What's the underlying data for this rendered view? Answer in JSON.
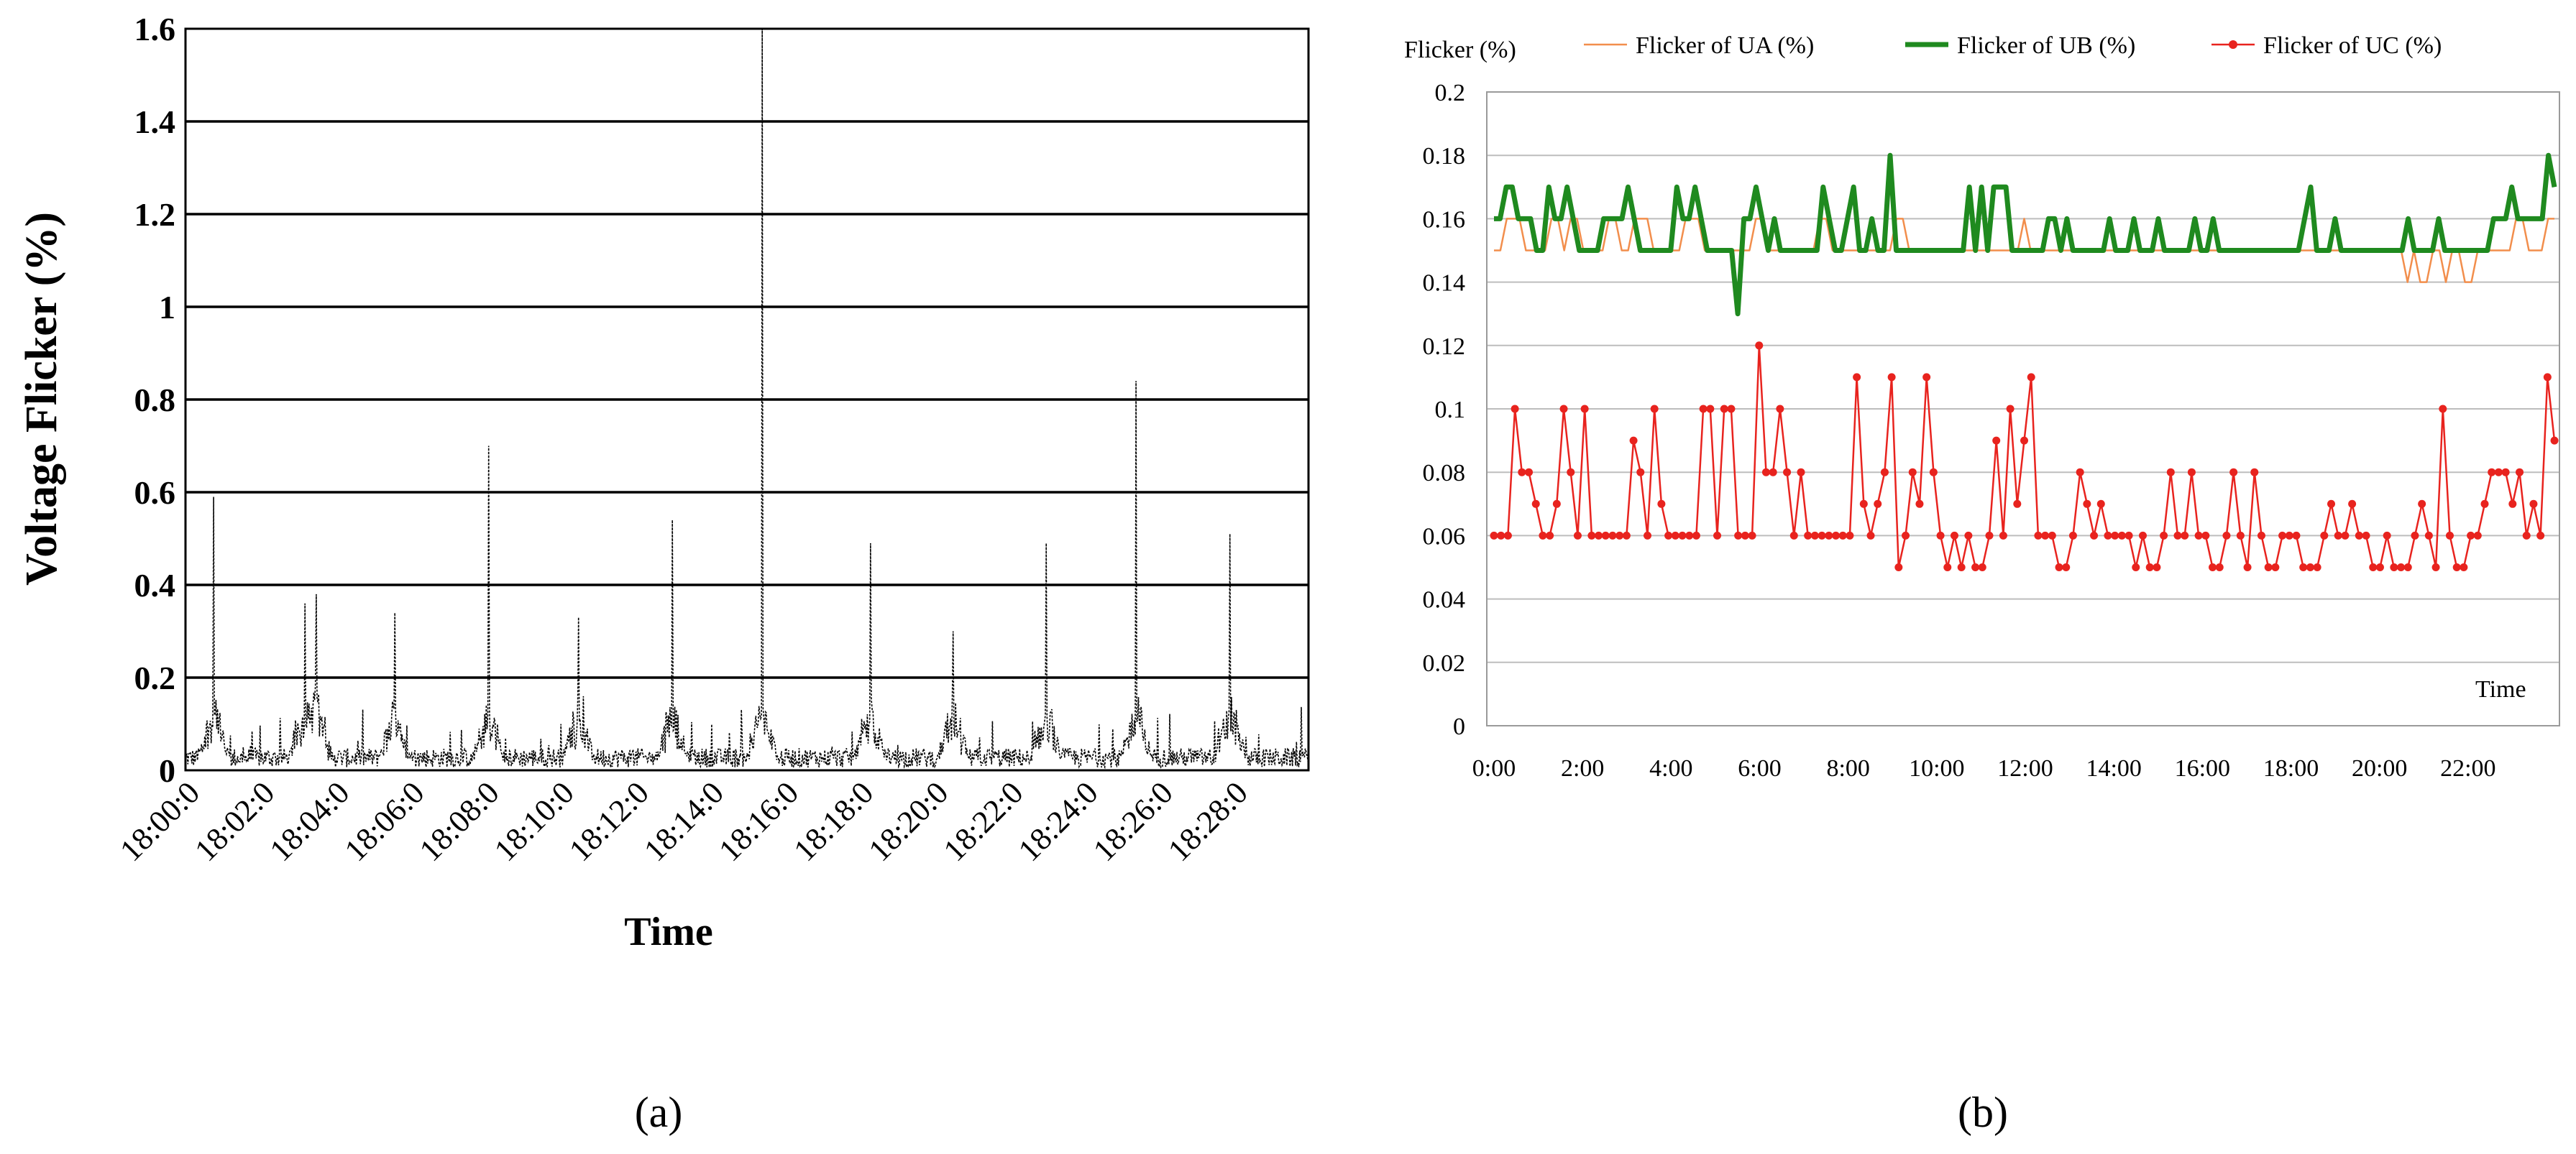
{
  "chart_data": [
    {
      "type": "line",
      "ylabel": "Voltage Flicker (%)",
      "xlabel": "Time",
      "ylim": [
        0,
        1.6
      ],
      "yticks": [
        "0",
        "0.2",
        "0.4",
        "0.6",
        "0.8",
        "1",
        "1.2",
        "1.4",
        "1.6"
      ],
      "xtick_labels": [
        "18:00:0",
        "18:02:0",
        "18:04:0",
        "18:06:0",
        "18:08:0",
        "18:10:0",
        "18:12:0",
        "18:14:0",
        "18:16:0",
        "18:18:0",
        "18:20:0",
        "18:22:0",
        "18:24:0",
        "18:26:0",
        "18:28:0"
      ],
      "x_range_minutes": [
        0,
        30
      ],
      "grid": "horizontal",
      "series": [
        {
          "color": "#000000",
          "baseline": 0.03,
          "spikes": [
            {
              "t": 0.75,
              "v": 0.59
            },
            {
              "t": 3.2,
              "v": 0.36
            },
            {
              "t": 3.5,
              "v": 0.38
            },
            {
              "t": 5.6,
              "v": 0.34
            },
            {
              "t": 8.1,
              "v": 0.7
            },
            {
              "t": 10.5,
              "v": 0.33
            },
            {
              "t": 13.0,
              "v": 0.54
            },
            {
              "t": 15.4,
              "v": 1.6
            },
            {
              "t": 18.3,
              "v": 0.49
            },
            {
              "t": 20.5,
              "v": 0.3
            },
            {
              "t": 23.0,
              "v": 0.49
            },
            {
              "t": 25.4,
              "v": 0.84
            },
            {
              "t": 27.9,
              "v": 0.51
            }
          ]
        }
      ],
      "panel_label": "(a)"
    },
    {
      "type": "line",
      "ylabel": "Flicker (%)",
      "xlabel": "Time",
      "ylim": [
        0,
        0.2
      ],
      "yticks": [
        "0",
        "0.02",
        "0.04",
        "0.06",
        "0.08",
        "0.1",
        "0.12",
        "0.14",
        "0.16",
        "0.18",
        "0.2"
      ],
      "xticks": [
        "0:00",
        "2:00",
        "4:00",
        "6:00",
        "8:00",
        "10:00",
        "12:00",
        "14:00",
        "16:00",
        "18:00",
        "20:00",
        "22:00"
      ],
      "x_range_hours": [
        0,
        24
      ],
      "grid": "horizontal",
      "legend": "top",
      "series": [
        {
          "name": "Flicker of  UA (%)",
          "color": "#f28e4c",
          "values": [
            0.15,
            0.15,
            0.16,
            0.16,
            0.16,
            0.15,
            0.15,
            0.15,
            0.15,
            0.16,
            0.16,
            0.15,
            0.16,
            0.16,
            0.15,
            0.15,
            0.15,
            0.15,
            0.16,
            0.16,
            0.15,
            0.15,
            0.16,
            0.16,
            0.16,
            0.15,
            0.15,
            0.15,
            0.15,
            0.15,
            0.16,
            0.16,
            0.16,
            0.15,
            0.15,
            0.15,
            0.15,
            0.15,
            0.15,
            0.15,
            0.15,
            0.16,
            0.16,
            0.15,
            0.15,
            0.15,
            0.15,
            0.15,
            0.15,
            0.15,
            0.15,
            0.16,
            0.16,
            0.15,
            0.15,
            0.15,
            0.15,
            0.15,
            0.15,
            0.15,
            0.15,
            0.15,
            0.15,
            0.16,
            0.16,
            0.15,
            0.15,
            0.15,
            0.15,
            0.15,
            0.15,
            0.15,
            0.15,
            0.15,
            0.15,
            0.15,
            0.15,
            0.15,
            0.15,
            0.15,
            0.15,
            0.15,
            0.15,
            0.16,
            0.15,
            0.15,
            0.15,
            0.15,
            0.15,
            0.15,
            0.15,
            0.15,
            0.15,
            0.15,
            0.15,
            0.15,
            0.15,
            0.15,
            0.15,
            0.15,
            0.15,
            0.15,
            0.15,
            0.15,
            0.15,
            0.15,
            0.15,
            0.15,
            0.15,
            0.15,
            0.15,
            0.15,
            0.15,
            0.15,
            0.15,
            0.15,
            0.15,
            0.15,
            0.15,
            0.15,
            0.15,
            0.15,
            0.15,
            0.15,
            0.15,
            0.15,
            0.15,
            0.15,
            0.15,
            0.15,
            0.15,
            0.15,
            0.15,
            0.15,
            0.15,
            0.15,
            0.15,
            0.15,
            0.15,
            0.15,
            0.15,
            0.15,
            0.15,
            0.14,
            0.15,
            0.14,
            0.14,
            0.15,
            0.15,
            0.14,
            0.15,
            0.15,
            0.14,
            0.14,
            0.15,
            0.15,
            0.15,
            0.15,
            0.15,
            0.15,
            0.16,
            0.16,
            0.15,
            0.15,
            0.15,
            0.16,
            0.16
          ]
        },
        {
          "name": "Flicker of  UB (%)",
          "color": "#1f8a1f",
          "values": [
            0.16,
            0.16,
            0.17,
            0.17,
            0.16,
            0.16,
            0.16,
            0.15,
            0.15,
            0.17,
            0.16,
            0.16,
            0.17,
            0.16,
            0.15,
            0.15,
            0.15,
            0.15,
            0.16,
            0.16,
            0.16,
            0.16,
            0.17,
            0.16,
            0.15,
            0.15,
            0.15,
            0.15,
            0.15,
            0.15,
            0.17,
            0.16,
            0.16,
            0.17,
            0.16,
            0.15,
            0.15,
            0.15,
            0.15,
            0.15,
            0.13,
            0.16,
            0.16,
            0.17,
            0.16,
            0.15,
            0.16,
            0.15,
            0.15,
            0.15,
            0.15,
            0.15,
            0.15,
            0.15,
            0.17,
            0.16,
            0.15,
            0.15,
            0.16,
            0.17,
            0.15,
            0.15,
            0.16,
            0.15,
            0.15,
            0.18,
            0.15,
            0.15,
            0.15,
            0.15,
            0.15,
            0.15,
            0.15,
            0.15,
            0.15,
            0.15,
            0.15,
            0.15,
            0.17,
            0.15,
            0.17,
            0.15,
            0.17,
            0.17,
            0.17,
            0.15,
            0.15,
            0.15,
            0.15,
            0.15,
            0.15,
            0.16,
            0.16,
            0.15,
            0.16,
            0.15,
            0.15,
            0.15,
            0.15,
            0.15,
            0.15,
            0.16,
            0.15,
            0.15,
            0.15,
            0.16,
            0.15,
            0.15,
            0.15,
            0.16,
            0.15,
            0.15,
            0.15,
            0.15,
            0.15,
            0.16,
            0.15,
            0.15,
            0.16,
            0.15,
            0.15,
            0.15,
            0.15,
            0.15,
            0.15,
            0.15,
            0.15,
            0.15,
            0.15,
            0.15,
            0.15,
            0.15,
            0.15,
            0.16,
            0.17,
            0.15,
            0.15,
            0.15,
            0.16,
            0.15,
            0.15,
            0.15,
            0.15,
            0.15,
            0.15,
            0.15,
            0.15,
            0.15,
            0.15,
            0.15,
            0.16,
            0.15,
            0.15,
            0.15,
            0.15,
            0.16,
            0.15,
            0.15,
            0.15,
            0.15,
            0.15,
            0.15,
            0.15,
            0.15,
            0.16,
            0.16,
            0.16,
            0.17,
            0.16,
            0.16,
            0.16,
            0.16,
            0.16,
            0.18,
            0.17
          ]
        },
        {
          "name": "Flicker of  UC (%)",
          "color": "#e8231e",
          "values": [
            0.06,
            0.06,
            0.06,
            0.1,
            0.08,
            0.08,
            0.07,
            0.06,
            0.06,
            0.07,
            0.1,
            0.08,
            0.06,
            0.1,
            0.06,
            0.06,
            0.06,
            0.06,
            0.06,
            0.06,
            0.09,
            0.08,
            0.06,
            0.1,
            0.07,
            0.06,
            0.06,
            0.06,
            0.06,
            0.06,
            0.1,
            0.1,
            0.06,
            0.1,
            0.1,
            0.06,
            0.06,
            0.06,
            0.12,
            0.08,
            0.08,
            0.1,
            0.08,
            0.06,
            0.08,
            0.06,
            0.06,
            0.06,
            0.06,
            0.06,
            0.06,
            0.06,
            0.11,
            0.07,
            0.06,
            0.07,
            0.08,
            0.11,
            0.05,
            0.06,
            0.08,
            0.07,
            0.11,
            0.08,
            0.06,
            0.05,
            0.06,
            0.05,
            0.06,
            0.05,
            0.05,
            0.06,
            0.09,
            0.06,
            0.1,
            0.07,
            0.09,
            0.11,
            0.06,
            0.06,
            0.06,
            0.05,
            0.05,
            0.06,
            0.08,
            0.07,
            0.06,
            0.07,
            0.06,
            0.06,
            0.06,
            0.06,
            0.05,
            0.06,
            0.05,
            0.05,
            0.06,
            0.08,
            0.06,
            0.06,
            0.08,
            0.06,
            0.06,
            0.05,
            0.05,
            0.06,
            0.08,
            0.06,
            0.05,
            0.08,
            0.06,
            0.05,
            0.05,
            0.06,
            0.06,
            0.06,
            0.05,
            0.05,
            0.05,
            0.06,
            0.07,
            0.06,
            0.06,
            0.07,
            0.06,
            0.06,
            0.05,
            0.05,
            0.06,
            0.05,
            0.05,
            0.05,
            0.06,
            0.07,
            0.06,
            0.05,
            0.1,
            0.06,
            0.05,
            0.05,
            0.06,
            0.06,
            0.07,
            0.08,
            0.08,
            0.08,
            0.07,
            0.08,
            0.06,
            0.07,
            0.06,
            0.11,
            0.09
          ]
        }
      ],
      "panel_label": "(b)"
    }
  ]
}
